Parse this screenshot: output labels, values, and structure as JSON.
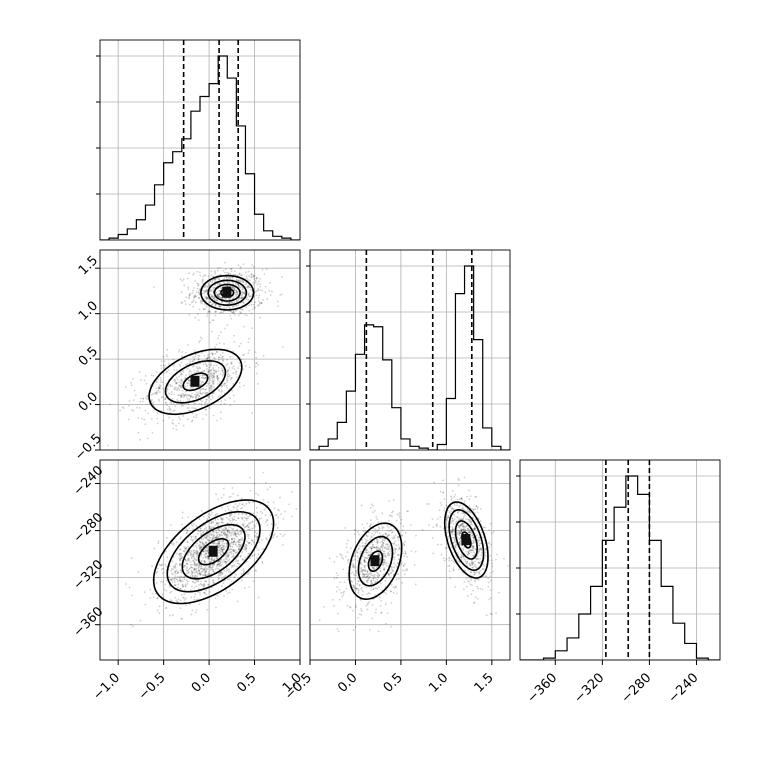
{
  "chart_data": {
    "type": "corner",
    "grid": true,
    "parameters": [
      {
        "id": "p1",
        "range": [
          -1.2,
          1.0
        ],
        "ticks": [
          -1.0,
          -0.5,
          0.0,
          0.5,
          1.0
        ],
        "tick_labels": [
          "−1.0",
          "−0.5",
          "0.0",
          "0.5",
          "1.0"
        ],
        "quantiles": [
          -0.28,
          0.11,
          0.32
        ],
        "histogram": {
          "edges": [
            -1.2,
            -1.1,
            -1.0,
            -0.9,
            -0.8,
            -0.7,
            -0.6,
            -0.5,
            -0.4,
            -0.3,
            -0.2,
            -0.1,
            0.0,
            0.1,
            0.2,
            0.3,
            0.4,
            0.5,
            0.6,
            0.7,
            0.8,
            0.9,
            1.0
          ],
          "counts": [
            0.0,
            0.01,
            0.03,
            0.06,
            0.11,
            0.19,
            0.3,
            0.42,
            0.48,
            0.55,
            0.7,
            0.78,
            0.85,
            1.0,
            0.88,
            0.62,
            0.36,
            0.14,
            0.05,
            0.02,
            0.01,
            0.0
          ]
        }
      },
      {
        "id": "p2",
        "range": [
          -0.5,
          1.7
        ],
        "ticks": [
          -0.5,
          0.0,
          0.5,
          1.0,
          1.5
        ],
        "tick_labels": [
          "−0.5",
          "0.0",
          "0.5",
          "1.0",
          "1.5"
        ],
        "quantiles": [
          0.12,
          0.85,
          1.28
        ],
        "histogram": {
          "edges": [
            -0.5,
            -0.4,
            -0.3,
            -0.2,
            -0.1,
            0.0,
            0.1,
            0.2,
            0.3,
            0.4,
            0.5,
            0.6,
            0.7,
            0.8,
            0.9,
            1.0,
            1.1,
            1.2,
            1.3,
            1.4,
            1.5,
            1.6,
            1.7
          ],
          "counts": [
            0.0,
            0.02,
            0.06,
            0.15,
            0.32,
            0.52,
            0.68,
            0.67,
            0.49,
            0.23,
            0.06,
            0.02,
            0.01,
            0.0,
            0.03,
            0.28,
            0.85,
            1.0,
            0.6,
            0.12,
            0.02,
            0.0
          ]
        }
      },
      {
        "id": "p3",
        "range": [
          -390,
          -220
        ],
        "ticks": [
          -360,
          -320,
          -280,
          -240
        ],
        "tick_labels": [
          "−360",
          "−320",
          "−280",
          "−240"
        ],
        "quantiles": [
          -317,
          -298,
          -280
        ],
        "histogram": {
          "edges": [
            -390,
            -380,
            -370,
            -360,
            -350,
            -340,
            -330,
            -320,
            -310,
            -300,
            -290,
            -280,
            -270,
            -260,
            -250,
            -240,
            -230,
            -220
          ],
          "counts": [
            0.0,
            0.0,
            0.01,
            0.05,
            0.12,
            0.25,
            0.4,
            0.65,
            0.83,
            1.0,
            0.9,
            0.65,
            0.4,
            0.2,
            0.09,
            0.01,
            0.0
          ]
        }
      }
    ],
    "pairs": [
      {
        "x": "p1",
        "y": "p2",
        "modes": [
          {
            "cx": 0.2,
            "cy": 1.23,
            "sx": 0.2,
            "sy": 0.13,
            "rho": 0.0,
            "weight": 0.5,
            "levels": [
              0.35,
              0.7,
              1.05,
              1.45
            ]
          },
          {
            "cx": -0.15,
            "cy": 0.25,
            "sx": 0.3,
            "sy": 0.21,
            "rho": 0.45,
            "weight": 0.5,
            "levels": [
              0.45,
              1.1,
              1.7
            ]
          }
        ]
      },
      {
        "x": "p1",
        "y": "p3",
        "modes": [
          {
            "cx": 0.05,
            "cy": -298,
            "sx": 0.3,
            "sy": 20,
            "rho": 0.55,
            "weight": 1.0,
            "levels": [
              0.55,
              1.15,
              1.7,
              2.2
            ]
          }
        ]
      },
      {
        "x": "p2",
        "y": "p3",
        "modes": [
          {
            "cx": 0.22,
            "cy": -306,
            "sx": 0.17,
            "sy": 19,
            "rho": 0.35,
            "weight": 0.5,
            "levels": [
              0.45,
              1.1,
              1.7
            ]
          },
          {
            "cx": 1.22,
            "cy": -288,
            "sx": 0.14,
            "sy": 19,
            "rho": -0.45,
            "weight": 0.5,
            "levels": [
              0.35,
              0.85,
              1.35,
              1.7
            ]
          }
        ]
      }
    ]
  }
}
